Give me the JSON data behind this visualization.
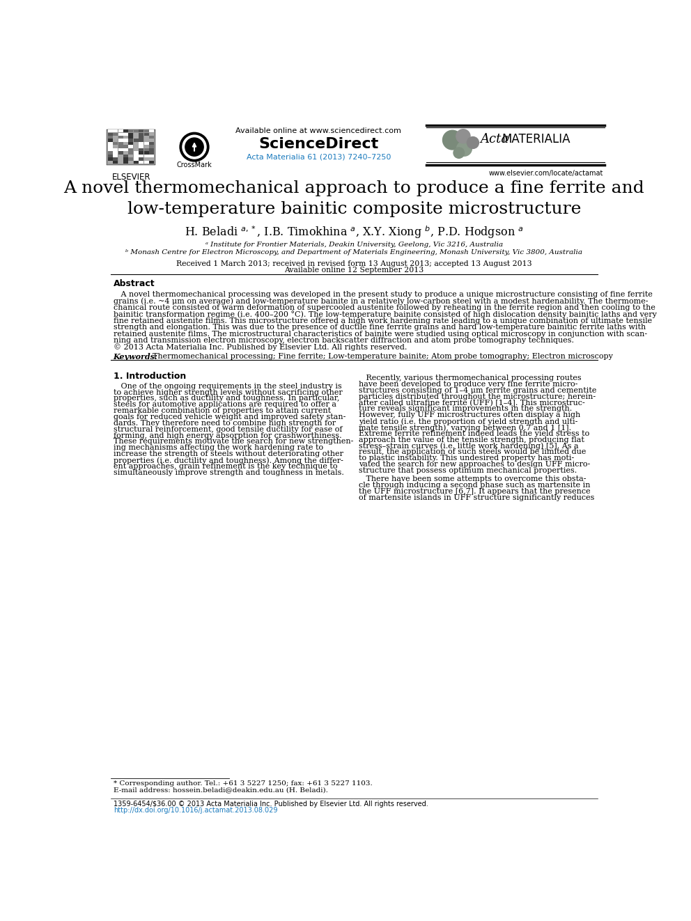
{
  "page_bg": "#ffffff",
  "header": {
    "available_online": "Available online at www.sciencedirect.com",
    "sciencedirect": "ScienceDirect",
    "journal_ref": "Acta Materialia 61 (2013) 7240–7250",
    "elsevier_text": "ELSEVIER",
    "website": "www.elsevier.com/locate/actamat"
  },
  "title": "A novel thermomechanical approach to produce a fine ferrite and\nlow-temperature bainitic composite microstructure",
  "affiliation_a": "ᵃ Institute for Frontier Materials, Deakin University, Geelong, Vic 3216, Australia",
  "affiliation_b": "ᵇ Monash Centre for Electron Microscopy, and Department of Materials Engineering, Monash University, Vic 3800, Australia",
  "received": "Received 1 March 2013; received in revised form 13 August 2013; accepted 13 August 2013",
  "available_online_date": "Available online 12 September 2013",
  "abstract_title": "Abstract",
  "abstract_lines": [
    "   A novel thermomechanical processing was developed in the present study to produce a unique microstructure consisting of fine ferrite",
    "grains (i.e. ~4 μm on average) and low-temperature bainite in a relatively low-carbon steel with a modest hardenability. The thermome-",
    "chanical route consisted of warm deformation of supercooled austenite followed by reheating in the ferrite region and then cooling to the",
    "bainitic transformation regime (i.e. 400–200 °C). The low-temperature bainite consisted of high dislocation density bainitic laths and very",
    "fine retained austenite films. This microstructure offered a high work hardening rate leading to a unique combination of ultimate tensile",
    "strength and elongation. This was due to the presence of ductile fine ferrite grains and hard low-temperature bainitic ferrite laths with",
    "retained austenite films. The microstructural characteristics of bainite were studied using optical microscopy in conjunction with scan-",
    "ning and transmission electron microscopy, electron backscatter diffraction and atom probe tomography techniques.",
    "© 2013 Acta Materialia Inc. Published by Elsevier Ltd. All rights reserved."
  ],
  "keywords_label": "Keywords:",
  "keywords_text": "  Thermomechanical processing; Fine ferrite; Low-temperature bainite; Atom probe tomography; Electron microscopy",
  "section1_title": "1. Introduction",
  "col1_lines": [
    "   One of the ongoing requirements in the steel industry is",
    "to achieve higher strength levels without sacrificing other",
    "properties, such as ductility and toughness. In particular,",
    "steels for automotive applications are required to offer a",
    "remarkable combination of properties to attain current",
    "goals for reduced vehicle weight and improved safety stan-",
    "dards. They therefore need to combine high strength for",
    "structural reinforcement, good tensile ductility for ease of",
    "forming, and high energy absorption for crashworthiness.",
    "These requirements motivate the search for new strengthen-",
    "ing mechanisms affecting the work hardening rate to",
    "increase the strength of steels without deteriorating other",
    "properties (i.e. ductility and toughness). Among the differ-",
    "ent approaches, grain refinement is the key technique to",
    "simultaneously improve strength and toughness in metals."
  ],
  "col2_lines1": [
    "   Recently, various thermomechanical processing routes",
    "have been developed to produce very fine ferrite micro-",
    "structures consisting of 1–4 μm ferrite grains and cementite",
    "particles distributed throughout the microstructure; herein-",
    "after called ultrafine ferrite (UFF) [1–4]. This microstruc-",
    "ture reveals significant improvements in the strength.",
    "However, fully UFF microstructures often display a high",
    "yield ratio (i.e. the proportion of yield strength and ulti-",
    "mate tensile strength), varying between 0.7 and 1 [1].",
    "Extreme ferrite refinement indeed leads the yield stress to",
    "approach the value of the tensile strength, producing flat",
    "stress–strain curves (i.e. little work hardening) [5]. As a",
    "result, the application of such steels would be limited due",
    "to plastic instability. This undesired property has moti-",
    "vated the search for new approaches to design UFF micro-",
    "structure that possess optimum mechanical properties."
  ],
  "col2_lines2": [
    "   There have been some attempts to overcome this obsta-",
    "cle through inducing a second phase such as martensite in",
    "the UFF microstructure [6,7]. It appears that the presence",
    "of martensite islands in UFF structure significantly reduces"
  ],
  "footnote_corresponding": "* Corresponding author. Tel.: +61 3 5227 1250; fax: +61 3 5227 1103.",
  "footnote_email": "E-mail address: hossein.beladi@deakin.edu.au (H. Beladi).",
  "bottom_line1": "1359-6454/$36.00 © 2013 Acta Materialia Inc. Published by Elsevier Ltd. All rights reserved.",
  "bottom_line2": "http://dx.doi.org/10.1016/j.actamat.2013.08.029",
  "blue_color": "#1a7abd",
  "line_color": "#000000"
}
